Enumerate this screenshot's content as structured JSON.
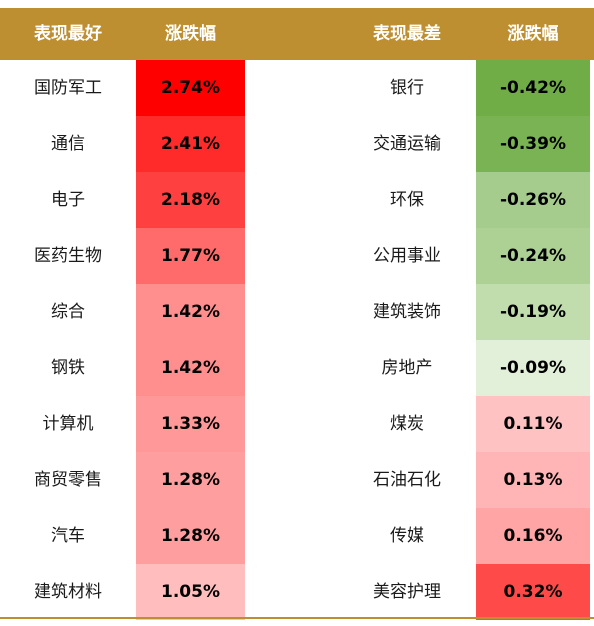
{
  "header_color": "#bd8f31",
  "bottom_line_color": "#bd8f31",
  "headers": {
    "best": "表现最好",
    "best_change": "涨跌幅",
    "worst": "表现最差",
    "worst_change": "涨跌幅"
  },
  "chart_data": {
    "type": "table",
    "columns": [
      "表现最好",
      "涨跌幅",
      "表现最差",
      "涨跌幅"
    ],
    "best": [
      {
        "sector": "国防军工",
        "change": "2.74%",
        "value": 2.74,
        "color": "#ff0000"
      },
      {
        "sector": "通信",
        "change": "2.41%",
        "value": 2.41,
        "color": "#ff2a2a"
      },
      {
        "sector": "电子",
        "change": "2.18%",
        "value": 2.18,
        "color": "#ff4040"
      },
      {
        "sector": "医药生物",
        "change": "1.77%",
        "value": 1.77,
        "color": "#ff6b6b"
      },
      {
        "sector": "综合",
        "change": "1.42%",
        "value": 1.42,
        "color": "#ff8f8f"
      },
      {
        "sector": "钢铁",
        "change": "1.42%",
        "value": 1.42,
        "color": "#ff8f8f"
      },
      {
        "sector": "计算机",
        "change": "1.33%",
        "value": 1.33,
        "color": "#ff9999"
      },
      {
        "sector": "商贸零售",
        "change": "1.28%",
        "value": 1.28,
        "color": "#ff9e9e"
      },
      {
        "sector": "汽车",
        "change": "1.28%",
        "value": 1.28,
        "color": "#ff9e9e"
      },
      {
        "sector": "建筑材料",
        "change": "1.05%",
        "value": 1.05,
        "color": "#ffbdbd"
      }
    ],
    "worst": [
      {
        "sector": "银行",
        "change": "-0.42%",
        "value": -0.42,
        "color": "#70ad47"
      },
      {
        "sector": "交通运输",
        "change": "-0.39%",
        "value": -0.39,
        "color": "#7ab353"
      },
      {
        "sector": "环保",
        "change": "-0.26%",
        "value": -0.26,
        "color": "#a5cb8d"
      },
      {
        "sector": "公用事业",
        "change": "-0.24%",
        "value": -0.24,
        "color": "#add094"
      },
      {
        "sector": "建筑装饰",
        "change": "-0.19%",
        "value": -0.19,
        "color": "#c1dcad"
      },
      {
        "sector": "房地产",
        "change": "-0.09%",
        "value": -0.09,
        "color": "#e2efd9"
      },
      {
        "sector": "煤炭",
        "change": "0.11%",
        "value": 0.11,
        "color": "#ffc2c2"
      },
      {
        "sector": "石油石化",
        "change": "0.13%",
        "value": 0.13,
        "color": "#ffb5b5"
      },
      {
        "sector": "传媒",
        "change": "0.16%",
        "value": 0.16,
        "color": "#ffa5a5"
      },
      {
        "sector": "美容护理",
        "change": "0.32%",
        "value": 0.32,
        "color": "#ff4a4a"
      }
    ]
  }
}
